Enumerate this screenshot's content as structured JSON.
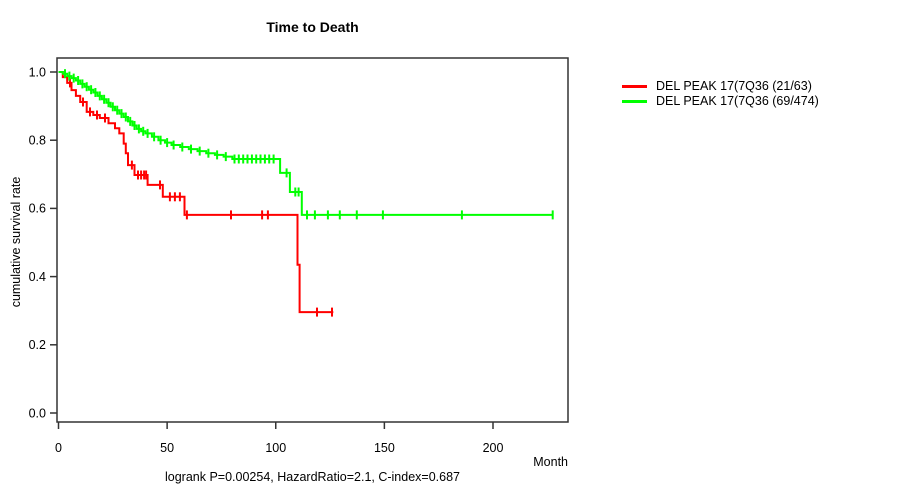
{
  "window": {
    "background": "#ffffff"
  },
  "chart_data": {
    "type": "line",
    "subtype": "kaplan-meier-step-curves",
    "title": "Time to Death",
    "xlabel": "Month",
    "ylabel": "cumulative survival rate",
    "footer": "logrank P=0.00254, HazardRatio=2.1, C-index=0.687",
    "xticks": [
      0,
      50,
      100,
      150,
      200
    ],
    "yticks": [
      "0.0",
      "0.2",
      "0.4",
      "0.6",
      "0.8",
      "1.0"
    ],
    "xlim": [
      0,
      234
    ],
    "ylim": [
      0,
      1.04
    ],
    "grid": false,
    "legend_position": "outside-right",
    "axis_color": "#333333",
    "series": [
      {
        "name": "DEL PEAK 17(7Q36 (21/63)",
        "color": "#ff0000",
        "steps": [
          [
            0,
            1.0
          ],
          [
            2,
            0.985
          ],
          [
            4,
            0.968
          ],
          [
            6,
            0.947
          ],
          [
            8,
            0.93
          ],
          [
            10,
            0.912
          ],
          [
            13,
            0.883
          ],
          [
            16,
            0.874
          ],
          [
            19,
            0.865
          ],
          [
            23,
            0.85
          ],
          [
            26,
            0.835
          ],
          [
            28,
            0.82
          ],
          [
            30,
            0.79
          ],
          [
            31,
            0.762
          ],
          [
            32,
            0.727
          ],
          [
            35,
            0.698
          ],
          [
            41,
            0.669
          ],
          [
            48,
            0.634
          ],
          [
            58,
            0.581
          ],
          [
            110,
            0.435
          ],
          [
            111,
            0.296
          ]
        ],
        "end_month": 126.5,
        "censor_months": [
          5.3,
          11.3,
          14.5,
          17.7,
          21.4,
          33.8,
          36.6,
          38,
          39.4,
          40.3,
          46.7,
          51.3,
          53.6,
          55.9,
          59.1,
          79.4,
          93.7,
          96.4,
          119,
          125.9
        ]
      },
      {
        "name": "DEL PEAK 17(7Q36 (69/474)",
        "color": "#00ff00",
        "steps": [
          [
            0,
            1.0
          ],
          [
            2,
            0.995
          ],
          [
            4,
            0.988
          ],
          [
            6,
            0.982
          ],
          [
            8,
            0.975
          ],
          [
            10,
            0.965
          ],
          [
            12,
            0.957
          ],
          [
            14,
            0.948
          ],
          [
            16,
            0.94
          ],
          [
            18,
            0.93
          ],
          [
            20,
            0.92
          ],
          [
            22,
            0.91
          ],
          [
            24,
            0.898
          ],
          [
            26,
            0.888
          ],
          [
            28,
            0.878
          ],
          [
            30,
            0.868
          ],
          [
            32,
            0.855
          ],
          [
            34,
            0.843
          ],
          [
            36,
            0.833
          ],
          [
            38,
            0.826
          ],
          [
            40,
            0.82
          ],
          [
            43,
            0.81
          ],
          [
            46,
            0.8
          ],
          [
            49,
            0.793
          ],
          [
            52,
            0.786
          ],
          [
            56,
            0.78
          ],
          [
            60,
            0.774
          ],
          [
            64,
            0.768
          ],
          [
            68,
            0.762
          ],
          [
            72,
            0.757
          ],
          [
            76,
            0.752
          ],
          [
            80,
            0.745
          ],
          [
            102,
            0.704
          ],
          [
            106.5,
            0.648
          ],
          [
            112,
            0.581
          ]
        ],
        "end_month": 227.5,
        "censor_months": [
          3,
          5,
          7,
          9,
          11,
          13,
          15,
          17,
          19,
          21,
          23,
          25,
          27,
          29,
          31,
          33,
          35,
          37,
          39,
          41,
          44,
          47,
          50,
          53,
          57,
          61,
          65,
          69,
          73,
          77,
          81,
          83,
          85,
          87,
          89,
          91,
          93,
          95,
          97,
          99,
          105,
          109,
          110.5,
          114.4,
          118,
          124,
          129.5,
          137.3,
          149.3,
          185.7,
          227.5
        ]
      }
    ]
  }
}
